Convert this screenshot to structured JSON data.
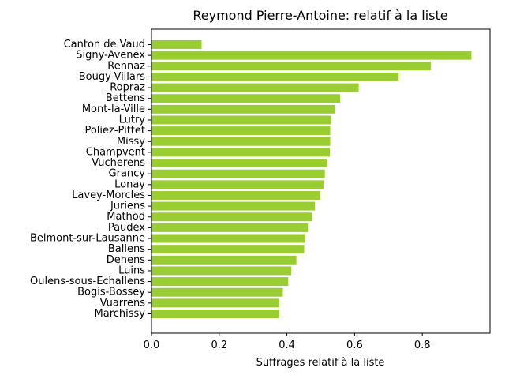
{
  "chart_data": {
    "type": "bar",
    "orientation": "horizontal",
    "title": "Reymond Pierre-Antoine: relatif à la liste",
    "xlabel": "Suffrages relatif à la liste",
    "ylabel": "",
    "xlim": [
      0,
      1.0
    ],
    "xticks": [
      0.0,
      0.2,
      0.4,
      0.6,
      0.8
    ],
    "xtick_labels": [
      "0.0",
      "0.2",
      "0.4",
      "0.6",
      "0.8"
    ],
    "grid": false,
    "bar_color": "#9acd32",
    "categories": [
      "Canton de Vaud",
      "Signy-Avenex",
      "Rennaz",
      "Bougy-Villars",
      "Ropraz",
      "Bettens",
      "Mont-la-Ville",
      "Lutry",
      "Poliez-Pittet",
      "Missy",
      "Champvent",
      "Vucherens",
      "Grancy",
      "Lonay",
      "Lavey-Morcles",
      "Juriens",
      "Mathod",
      "Paudex",
      "Belmont-sur-Lausanne",
      "Ballens",
      "Denens",
      "Luins",
      "Oulens-sous-Echallens",
      "Bogis-Bossey",
      "Vuarrens",
      "Marchissy"
    ],
    "values": [
      0.148,
      0.945,
      0.825,
      0.73,
      0.612,
      0.557,
      0.541,
      0.53,
      0.528,
      0.528,
      0.527,
      0.519,
      0.512,
      0.508,
      0.499,
      0.483,
      0.474,
      0.462,
      0.453,
      0.451,
      0.428,
      0.413,
      0.404,
      0.388,
      0.377,
      0.377
    ]
  }
}
